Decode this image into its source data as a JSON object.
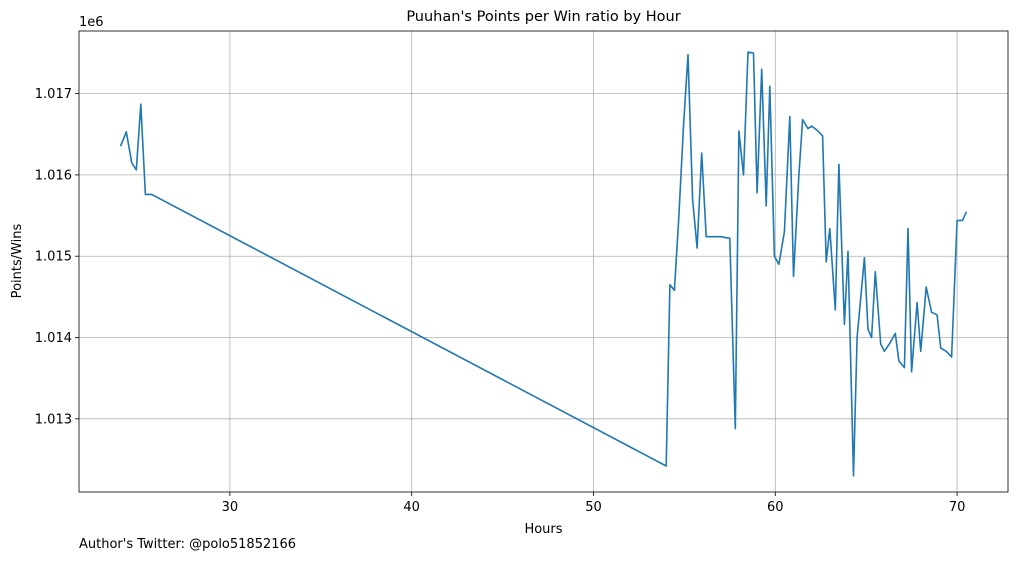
{
  "chart_data": {
    "type": "line",
    "title": "Puuhan's Points per Win ratio by Hour",
    "xlabel": "Hours",
    "ylabel": "Points/Wins",
    "y_offset_label": "1e6",
    "xlim": [
      21.7,
      72.8
    ],
    "ylim": [
      1012.1,
      1017.77
    ],
    "x_ticks": [
      30,
      40,
      50,
      60,
      70
    ],
    "y_ticks": [
      1013,
      1014,
      1015,
      1016,
      1017
    ],
    "y_tick_labels": [
      "1.013",
      "1.014",
      "1.015",
      "1.016",
      "1.017"
    ],
    "grid": true,
    "series": [
      {
        "color": "#1f77b4",
        "x": [
          24.0,
          24.3,
          24.6,
          24.85,
          25.1,
          25.35,
          25.7,
          54.0,
          54.2,
          54.45,
          54.7,
          54.95,
          55.2,
          55.45,
          55.7,
          55.95,
          56.2,
          56.5,
          57.0,
          57.5,
          57.8,
          58.0,
          58.25,
          58.5,
          58.8,
          59.0,
          59.25,
          59.5,
          59.7,
          59.95,
          60.2,
          60.5,
          60.8,
          61.0,
          61.3,
          61.5,
          61.8,
          62.0,
          62.3,
          62.6,
          62.8,
          63.0,
          63.3,
          63.5,
          63.8,
          64.0,
          64.3,
          64.5,
          64.9,
          65.1,
          65.3,
          65.5,
          65.8,
          66.0,
          66.3,
          66.6,
          66.8,
          67.1,
          67.3,
          67.5,
          67.8,
          68.0,
          68.3,
          68.6,
          68.9,
          69.1,
          69.4,
          69.7,
          70.0,
          70.3,
          70.5
        ],
        "y": [
          1016.36,
          1016.53,
          1016.15,
          1016.06,
          1016.87,
          1015.76,
          1015.76,
          1012.42,
          1014.65,
          1014.58,
          1015.5,
          1016.6,
          1017.48,
          1015.7,
          1015.1,
          1016.27,
          1015.24,
          1015.24,
          1015.24,
          1015.22,
          1012.88,
          1016.54,
          1016.0,
          1017.51,
          1017.5,
          1015.78,
          1017.3,
          1015.62,
          1017.09,
          1015.0,
          1014.9,
          1015.3,
          1016.72,
          1014.75,
          1016.0,
          1016.68,
          1016.57,
          1016.6,
          1016.55,
          1016.48,
          1014.93,
          1015.34,
          1014.34,
          1016.13,
          1014.16,
          1015.06,
          1012.3,
          1014.0,
          1014.98,
          1014.1,
          1014.0,
          1014.81,
          1013.92,
          1013.83,
          1013.93,
          1014.05,
          1013.71,
          1013.63,
          1015.34,
          1013.58,
          1014.43,
          1013.83,
          1014.62,
          1014.31,
          1014.28,
          1013.87,
          1013.83,
          1013.76,
          1015.44,
          1015.44,
          1015.54
        ]
      }
    ]
  },
  "footer": {
    "label": "Author's Twitter:",
    "handle": "@polo51852166"
  },
  "colors": {
    "line": "#1f77b4",
    "grid": "#b0b0b0",
    "axes": "#000000"
  }
}
